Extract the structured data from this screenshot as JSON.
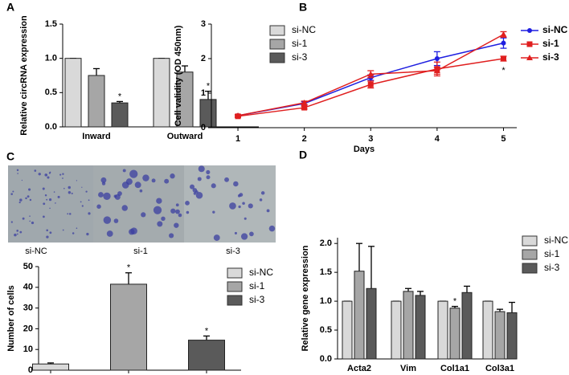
{
  "chart_data": [
    {
      "type": "bar",
      "panel": "A",
      "ylabel": "Relative circRNA expression",
      "categories": [
        "Inward",
        "Outward"
      ],
      "series": [
        {
          "name": "si-NC",
          "color": "#d9d9d9",
          "values": [
            1,
            1
          ],
          "errors": [
            0,
            0
          ]
        },
        {
          "name": "si-1",
          "color": "#a6a6a6",
          "values": [
            0.75,
            0.8
          ],
          "errors": [
            0.1,
            0.09
          ]
        },
        {
          "name": "si-3",
          "color": "#5a5a5a",
          "values": [
            0.35,
            0.4
          ],
          "errors": [
            0.02,
            0.12
          ],
          "annotations": [
            "*",
            "*"
          ]
        }
      ],
      "ylim": [
        0,
        1.5
      ],
      "yticks": [
        {
          "value": 0,
          "label": "0.0"
        },
        0.5,
        {
          "value": 1,
          "label": "1.0"
        },
        1.5
      ],
      "legend": "right"
    },
    {
      "type": "line",
      "panel": "B",
      "xlabel": "Days",
      "ylabel": "Cell validity (OD 450nm)",
      "x": [
        1,
        2,
        3,
        4,
        5
      ],
      "series": [
        {
          "name": "si-NC",
          "color": "#1f1fe0",
          "marker": "circle",
          "values": [
            0.35,
            0.7,
            1.45,
            2.0,
            2.45
          ],
          "errors": [
            0.03,
            0.05,
            0.08,
            0.2,
            0.15
          ]
        },
        {
          "name": "si-1",
          "color": "#e01f1f",
          "marker": "square",
          "values": [
            0.33,
            0.58,
            1.25,
            1.7,
            2.0
          ],
          "errors": [
            0.03,
            0.04,
            0.1,
            0.2,
            0.07
          ],
          "annotations": [
            null,
            null,
            null,
            null,
            "*"
          ]
        },
        {
          "name": "si-3",
          "color": "#e01f1f",
          "marker": "triangle",
          "values": [
            0.35,
            0.72,
            1.55,
            1.65,
            2.7
          ],
          "errors": [
            0.03,
            0.05,
            0.1,
            0.1,
            0.08
          ]
        }
      ],
      "xlim": [
        0.6,
        5.2
      ],
      "xticks": [
        1,
        2,
        3,
        4,
        5
      ],
      "ylim": [
        0,
        3
      ],
      "yticks": [
        0,
        1,
        2,
        3
      ],
      "legend": "right"
    },
    {
      "type": "bar",
      "panel": "C",
      "ylabel": "Number of cells",
      "image_labels": [
        "si-NC",
        "si-1",
        "si-3"
      ],
      "categories": [
        null
      ],
      "series": [
        {
          "name": "si-NC",
          "color": "#d9d9d9",
          "values": [
            3
          ],
          "errors": [
            0.5
          ]
        },
        {
          "name": "si-1",
          "color": "#a6a6a6",
          "values": [
            41.5
          ],
          "errors": [
            5.5
          ],
          "annotations": [
            "*"
          ]
        },
        {
          "name": "si-3",
          "color": "#5a5a5a",
          "values": [
            14.5
          ],
          "errors": [
            2
          ],
          "annotations": [
            "*"
          ]
        }
      ],
      "ylim": [
        0,
        50
      ],
      "yticks": [
        0,
        10,
        20,
        30,
        40,
        50
      ],
      "legend": "right"
    },
    {
      "type": "bar",
      "panel": "D",
      "ylabel": "Relative gene expression",
      "categories": [
        "Acta2",
        "Vim",
        "Col1a1",
        "Col3a1"
      ],
      "series": [
        {
          "name": "si-NC",
          "color": "#d9d9d9",
          "values": [
            1,
            1,
            1,
            1
          ],
          "errors": [
            0,
            0,
            0,
            0
          ]
        },
        {
          "name": "si-1",
          "color": "#a6a6a6",
          "values": [
            1.52,
            1.17,
            0.88,
            0.82
          ],
          "errors": [
            0.48,
            0.05,
            0.03,
            0.04
          ],
          "annotations": [
            null,
            null,
            "*",
            null
          ]
        },
        {
          "name": "si-3",
          "color": "#5a5a5a",
          "values": [
            1.22,
            1.1,
            1.15,
            0.8
          ],
          "errors": [
            0.73,
            0.07,
            0.11,
            0.18
          ]
        }
      ],
      "ylim": [
        0,
        2.1
      ],
      "yticks": [
        {
          "value": 0,
          "label": "0.0"
        },
        0.5,
        {
          "value": 1,
          "label": "1.0"
        },
        1.5,
        {
          "value": 2,
          "label": "2.0"
        }
      ],
      "legend": "right"
    }
  ]
}
